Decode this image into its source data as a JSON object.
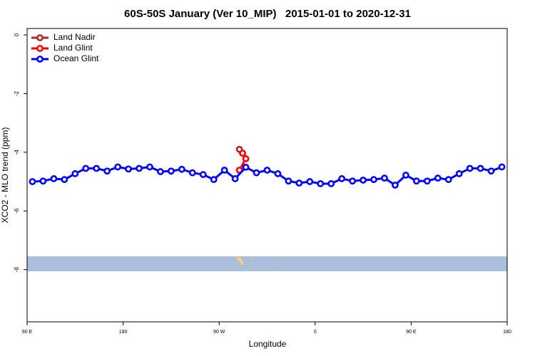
{
  "chart_data": {
    "type": "line",
    "title": "60S-50S January (Ver 10_MIP)   2015-01-01 to 2020-12-31",
    "x_label": "Longitude",
    "y_label": "XCO2 - MLO trend (ppm)",
    "xlim": [
      90,
      540
    ],
    "ylim": [
      -9.78,
      0.22
    ],
    "xticks": [
      {
        "value": 90,
        "label": "90 E"
      },
      {
        "value": 180,
        "label": "180"
      },
      {
        "value": 270,
        "label": "90 W"
      },
      {
        "value": 360,
        "label": "0"
      },
      {
        "value": 450,
        "label": "90 E"
      },
      {
        "value": 540,
        "label": "180"
      }
    ],
    "yticks": [
      0,
      -2,
      -4,
      -6,
      -8
    ],
    "legend": "topleft",
    "series": [
      {
        "name": "Land Nadir",
        "color": "#a52a2a",
        "x": [
          289,
          292
        ],
        "values": [
          -3.9,
          -4.03
        ]
      },
      {
        "name": "Land Glint",
        "color": "#ff0000",
        "x": [
          289,
          295,
          292
        ],
        "values": [
          -4.61,
          -4.22,
          -4.03
        ]
      },
      {
        "name": "Ocean Glint",
        "color": "#0000ff",
        "x": [
          95,
          105,
          115,
          125,
          135,
          145,
          155,
          165,
          175,
          185,
          195,
          205,
          215,
          225,
          235,
          245,
          255,
          265,
          275,
          285,
          295,
          305,
          315,
          325,
          335,
          345,
          355,
          365,
          375,
          385,
          395,
          405,
          415,
          425,
          435,
          445,
          455,
          465,
          475,
          485,
          495,
          505,
          515,
          525,
          535
        ],
        "values": [
          -5.0,
          -4.98,
          -4.9,
          -4.93,
          -4.73,
          -4.55,
          -4.55,
          -4.64,
          -4.5,
          -4.57,
          -4.55,
          -4.5,
          -4.66,
          -4.64,
          -4.58,
          -4.7,
          -4.76,
          -4.93,
          -4.61,
          -4.9,
          -4.51,
          -4.7,
          -4.61,
          -4.73,
          -4.98,
          -5.05,
          -5.0,
          -5.07,
          -5.07,
          -4.9,
          -4.98,
          -4.95,
          -4.93,
          -4.88,
          -5.12,
          -4.78,
          -4.98,
          -4.98,
          -4.88,
          -4.93,
          -4.73,
          -4.55,
          -4.55,
          -4.64,
          -4.5
        ]
      }
    ]
  }
}
